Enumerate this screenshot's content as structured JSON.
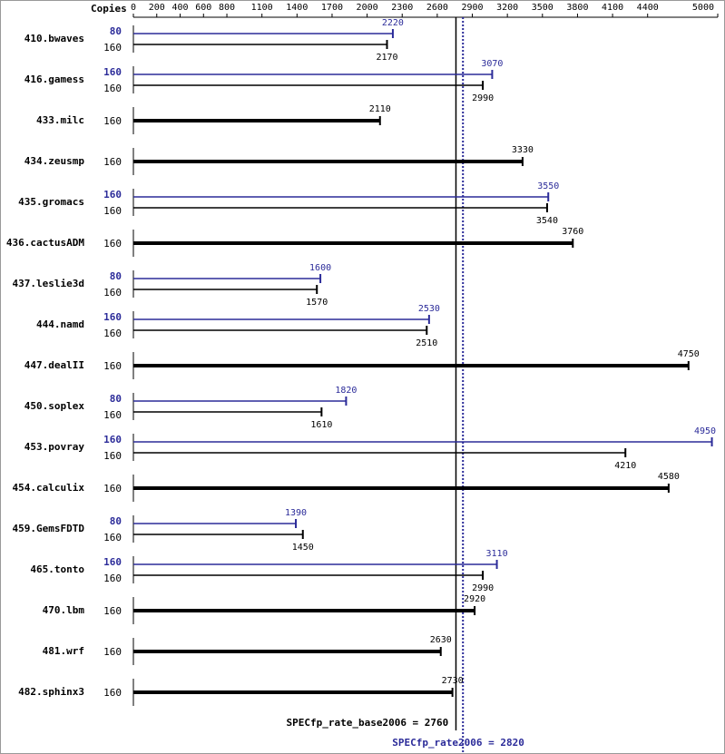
{
  "chart_data": {
    "type": "bar",
    "axis_label": "Copies",
    "categories": [
      "410.bwaves",
      "416.gamess",
      "433.milc",
      "434.zeusmp",
      "435.gromacs",
      "436.cactusADM",
      "437.leslie3d",
      "444.namd",
      "447.dealII",
      "450.soplex",
      "453.povray",
      "454.calculix",
      "459.GemsFDTD",
      "465.tonto",
      "470.lbm",
      "481.wrf",
      "482.sphinx3"
    ],
    "base_copies": [
      160,
      160,
      160,
      160,
      160,
      160,
      160,
      160,
      160,
      160,
      160,
      160,
      160,
      160,
      160,
      160,
      160
    ],
    "base_values": [
      2170,
      2990,
      2110,
      3330,
      3540,
      3760,
      1570,
      2510,
      4750,
      1610,
      4210,
      4580,
      1450,
      2990,
      2920,
      2630,
      2730
    ],
    "peak_copies": [
      80,
      160,
      null,
      null,
      160,
      null,
      80,
      160,
      null,
      80,
      160,
      null,
      80,
      160,
      null,
      null,
      null
    ],
    "peak_values": [
      2220,
      3070,
      null,
      null,
      3550,
      null,
      1600,
      2530,
      null,
      1820,
      4950,
      null,
      1390,
      3110,
      null,
      null,
      null
    ],
    "base_color": "#000000",
    "peak_color": "#2b2b99",
    "xlim": [
      0,
      5000
    ],
    "xticks": [
      0,
      200,
      400,
      600,
      800,
      1100,
      1400,
      1700,
      2000,
      2300,
      2600,
      2900,
      3200,
      3500,
      3800,
      4100,
      4400,
      5000
    ],
    "reference_lines": [
      {
        "value": 2760,
        "label": "SPECfp_rate_base2006 = 2760",
        "color": "#000000",
        "style": "solid"
      },
      {
        "value": 2820,
        "label": "SPECfp_rate2006 = 2820",
        "color": "#2b2b99",
        "style": "dotted"
      }
    ]
  }
}
